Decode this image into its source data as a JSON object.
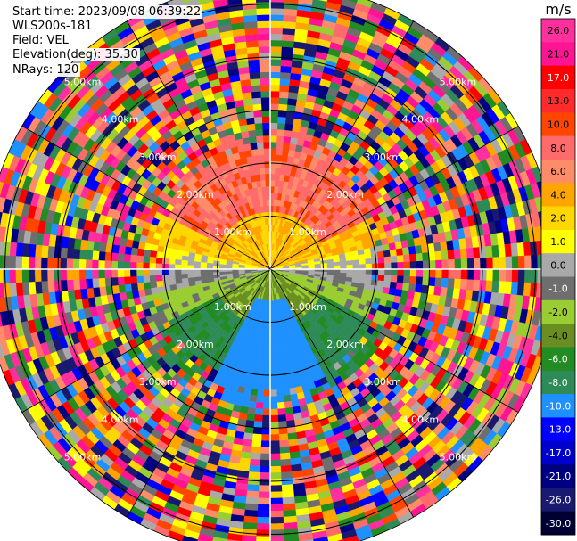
{
  "header": {
    "start_time": "Start time: 2023/09/08 06:39:22",
    "instrument": "WLS200s-181",
    "field": "Field: VEL",
    "elevation": "Elevation(deg): 35.30",
    "nrays": "NRays: 120"
  },
  "chart_data": {
    "type": "ppi",
    "field": "VEL",
    "elevation_deg": 35.3,
    "nrays": 120,
    "range_rings": [
      {
        "value": 1.0,
        "label": "1.00km"
      },
      {
        "value": 2.0,
        "label": "2.00km"
      },
      {
        "value": 3.0,
        "label": "3.00km"
      },
      {
        "value": 4.0,
        "label": "4.00km"
      },
      {
        "value": 5.0,
        "label": "5.00km"
      }
    ],
    "max_range_km": 5.4,
    "regions": [
      {
        "name": "near-north",
        "range_km": [
          0.2,
          1.2
        ],
        "velocity_ms": 2.0
      },
      {
        "name": "mid-north",
        "range_km": [
          1.2,
          2.4
        ],
        "velocity_ms": 8.0
      },
      {
        "name": "near-south",
        "range_km": [
          0.2,
          1.2
        ],
        "velocity_ms": -4.0
      },
      {
        "name": "mid-south",
        "range_km": [
          1.2,
          2.4
        ],
        "velocity_ms": -8.0
      },
      {
        "name": "far-field",
        "range_km": [
          2.4,
          5.4
        ],
        "velocity_ms": "noise"
      }
    ],
    "colorbar": {
      "unit": "m/s",
      "ticks": [
        "26.0",
        "21.0",
        "17.0",
        "13.0",
        "10.0",
        "8.0",
        "6.0",
        "4.0",
        "2.0",
        "1.0",
        "0.0",
        "-1.0",
        "-2.0",
        "-4.0",
        "-6.0",
        "-8.0",
        "-10.0",
        "-13.0",
        "-17.0",
        "-21.0",
        "-26.0",
        "-30.0"
      ],
      "colors": [
        "#ff2f9e",
        "#ff1493",
        "#ff0000",
        "#ff2a2a",
        "#ff4500",
        "#ff6a6a",
        "#ff8c69",
        "#ffa500",
        "#ffd700",
        "#ffff00",
        "#a9a9a9",
        "#6e6e6e",
        "#9acd32",
        "#6b8e23",
        "#228b22",
        "#2e8b57",
        "#1e90ff",
        "#0000ff",
        "#0000cd",
        "#000080",
        "#191970",
        "#000033"
      ]
    }
  },
  "colors": {
    "background": "#ffffff",
    "ring_color": "#000000"
  }
}
